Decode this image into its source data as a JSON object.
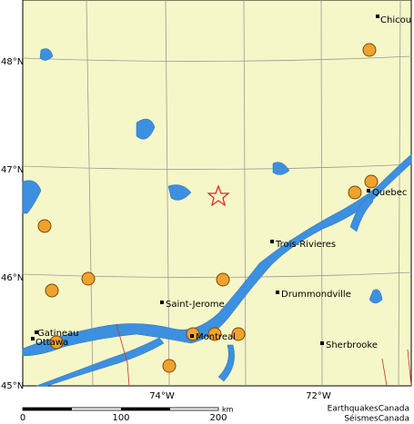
{
  "map": {
    "latitude_labels": [
      "48°N",
      "47°N",
      "46°N",
      "45°N"
    ],
    "longitude_labels": [
      "74°W",
      "72°W"
    ],
    "cities": [
      "Chicou",
      "Quebec",
      "Trois-Rivieres",
      "Drummondville",
      "Saint-Jerome",
      "Gatineau",
      "Ottawa",
      "Montreal",
      "Sherbrooke"
    ],
    "scale": {
      "labels": [
        "0",
        "100",
        "200"
      ],
      "unit": "km"
    },
    "credit": [
      "EarthquakesCanada",
      "SéismesCanada"
    ]
  }
}
